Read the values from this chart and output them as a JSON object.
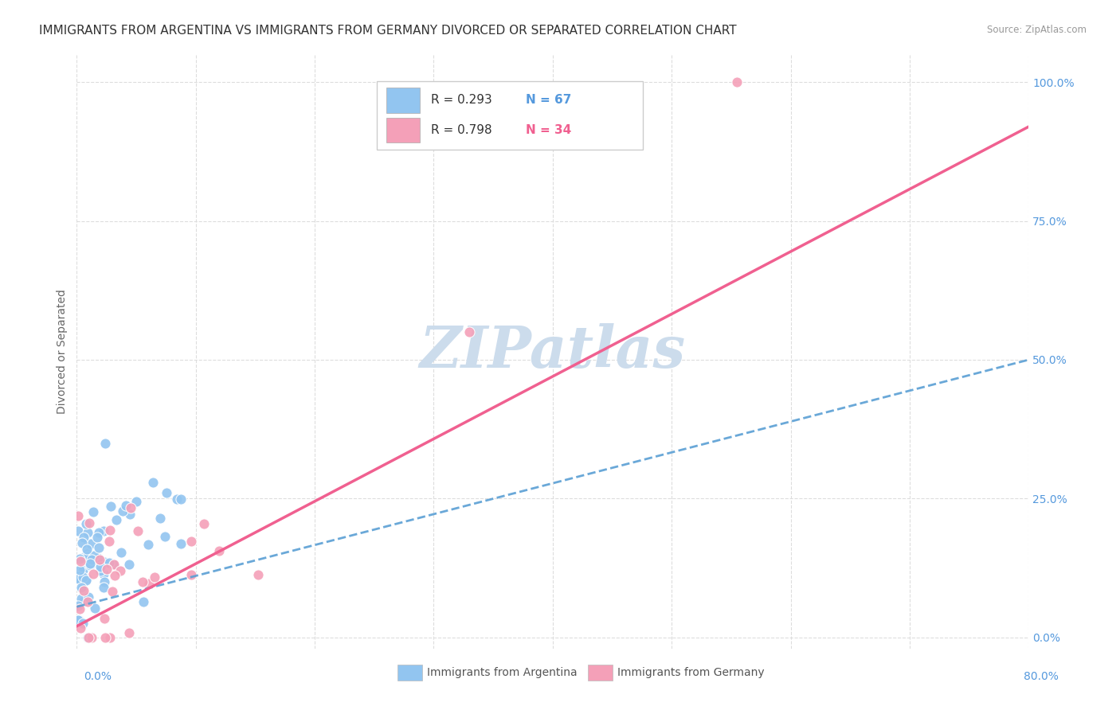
{
  "title": "IMMIGRANTS FROM ARGENTINA VS IMMIGRANTS FROM GERMANY DIVORCED OR SEPARATED CORRELATION CHART",
  "source": "Source: ZipAtlas.com",
  "ylabel": "Divorced or Separated",
  "argentina_color": "#92c5f0",
  "germany_color": "#f4a0b8",
  "argentina_line_color": "#5a9fd4",
  "germany_line_color": "#f06090",
  "legend_r_argentina": "R = 0.293",
  "legend_n_argentina": "N = 67",
  "legend_r_germany": "R = 0.798",
  "legend_n_germany": "N = 34",
  "legend_label_argentina": "Immigrants from Argentina",
  "legend_label_germany": "Immigrants from Germany",
  "watermark": "ZIPatlas",
  "argentina_trend_x": [
    0.0,
    0.8
  ],
  "argentina_trend_y": [
    0.055,
    0.5
  ],
  "germany_trend_x": [
    0.0,
    0.8
  ],
  "germany_trend_y": [
    0.02,
    0.92
  ],
  "grid_color": "#dddddd",
  "bg_color": "#ffffff",
  "title_fontsize": 11,
  "axis_label_fontsize": 10,
  "tick_fontsize": 10,
  "watermark_color": "#ccdcec",
  "watermark_fontsize": 52,
  "xlim": [
    0.0,
    0.8
  ],
  "ylim": [
    -0.02,
    1.05
  ]
}
